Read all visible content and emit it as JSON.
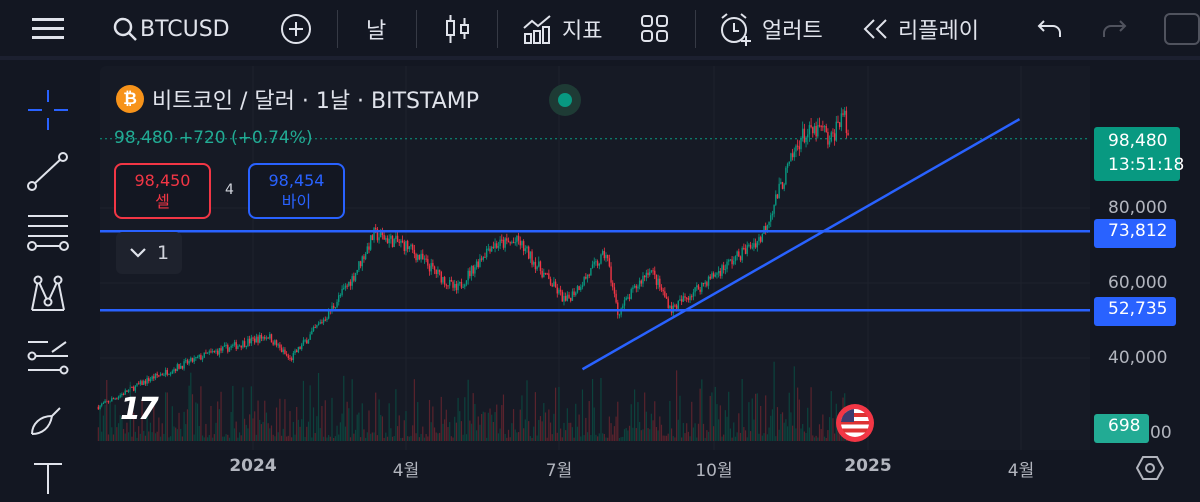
{
  "topbar": {
    "menu_icon": "hamburger-icon",
    "symbol": "BTCUSD",
    "interval": "날",
    "indicators_label": "지표",
    "alerts_label": "얼러트",
    "replay_label": "리플레이"
  },
  "legend": {
    "title": "비트코인 / 달러 · 1날 · BITSTAMP",
    "price": "98,480",
    "change": "+720 (+0.74%)",
    "sell_price": "98,450",
    "sell_label": "셀",
    "spread": "4",
    "buy_price": "98,454",
    "buy_label": "바이",
    "collapsed_count": "1",
    "market_status": "open"
  },
  "price_scale": {
    "labels": [
      "80,000",
      "60,000",
      "40,000",
      "00"
    ],
    "current_price": "98,480",
    "countdown": "13:51:18",
    "line1": "73,812",
    "line2": "52,735",
    "volume": "698"
  },
  "time_axis": [
    "2024",
    "4월",
    "7월",
    "10월",
    "2025",
    "4월"
  ],
  "colors": {
    "up": "#089981",
    "down": "#f23645",
    "drawing": "#2962ff",
    "accent": "#22ab94"
  },
  "chart_data": {
    "type": "candlestick",
    "symbol": "BTCUSD",
    "interval": "1D",
    "y_ticks": [
      40000,
      60000,
      80000
    ],
    "approx_close_path": [
      [
        "2023-10-01",
        27000
      ],
      [
        "2023-11-01",
        34500
      ],
      [
        "2023-12-05",
        41000
      ],
      [
        "2024-01-10",
        46000
      ],
      [
        "2024-01-23",
        39500
      ],
      [
        "2024-02-15",
        52000
      ],
      [
        "2024-03-01",
        62000
      ],
      [
        "2024-03-13",
        73000
      ],
      [
        "2024-04-01",
        70000
      ],
      [
        "2024-05-01",
        58000
      ],
      [
        "2024-05-21",
        70000
      ],
      [
        "2024-06-07",
        71000
      ],
      [
        "2024-07-05",
        55000
      ],
      [
        "2024-07-29",
        68000
      ],
      [
        "2024-08-05",
        52000
      ],
      [
        "2024-08-24",
        64000
      ],
      [
        "2024-09-06",
        53000
      ],
      [
        "2024-10-01",
        62000
      ],
      [
        "2024-10-29",
        72000
      ],
      [
        "2024-11-12",
        88000
      ],
      [
        "2024-11-22",
        99000
      ],
      [
        "2024-12-05",
        101000
      ],
      [
        "2024-12-09",
        97000
      ],
      [
        "2024-12-17",
        106000
      ],
      [
        "2024-12-20",
        98480
      ]
    ],
    "horizontal_lines": [
      73812,
      52735
    ],
    "trend_line": [
      [
        "2024-07-15",
        37000
      ],
      [
        "2025-04-01",
        103700
      ]
    ]
  }
}
